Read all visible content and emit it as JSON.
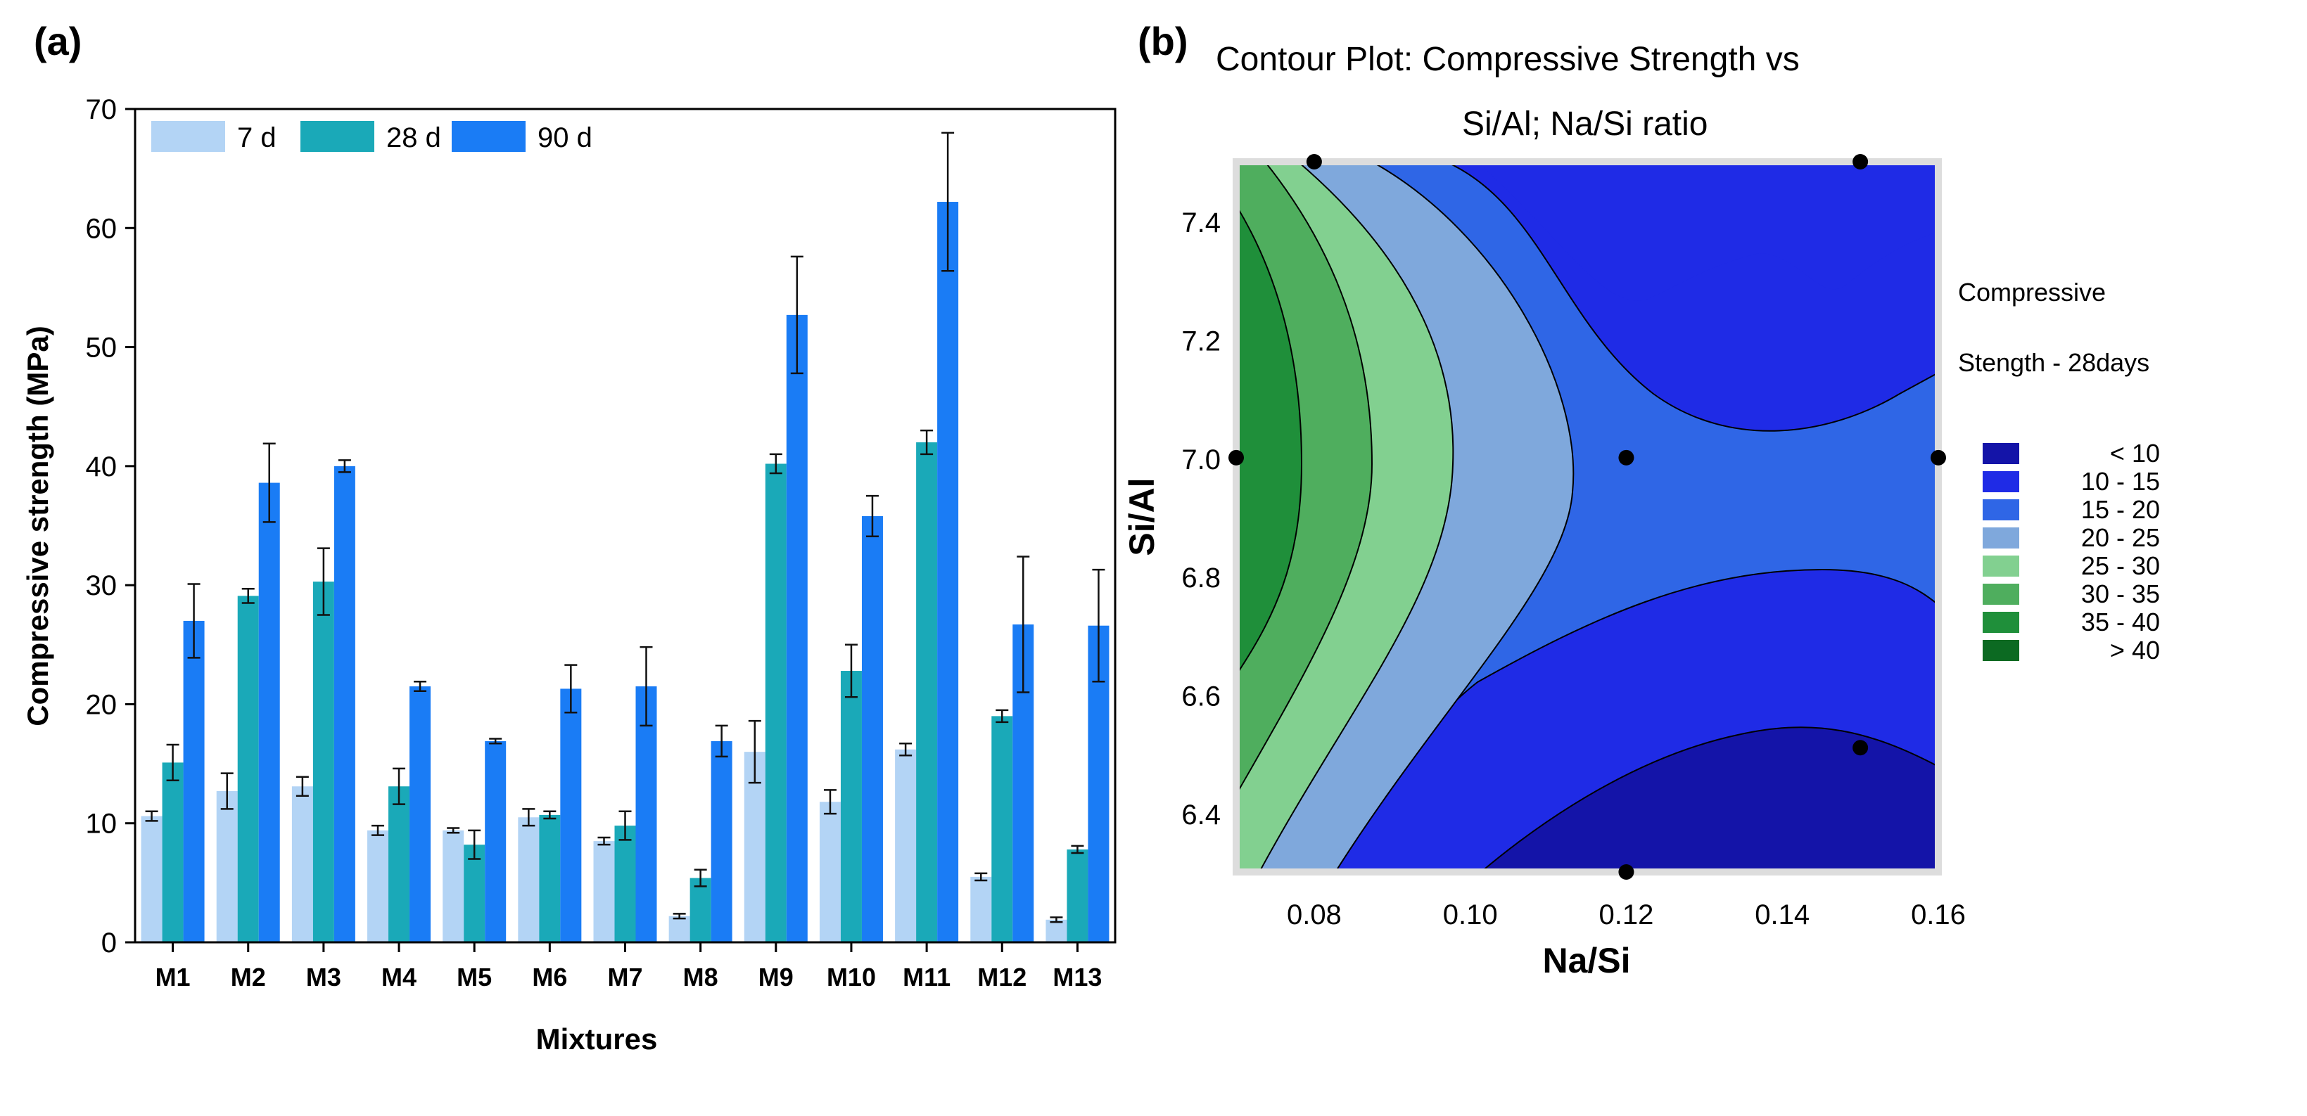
{
  "chart_data": [
    {
      "panel": "(a)",
      "type": "bar",
      "xlabel": "Mixtures",
      "ylabel": "Compressive strength (MPa)",
      "ylim": [
        0,
        70
      ],
      "yticks": [
        0,
        10,
        20,
        30,
        40,
        50,
        60,
        70
      ],
      "categories": [
        "M1",
        "M2",
        "M3",
        "M4",
        "M5",
        "M6",
        "M7",
        "M8",
        "M9",
        "M10",
        "M11",
        "M12",
        "M13"
      ],
      "legend_position": "top-left",
      "series": [
        {
          "name": "7 d",
          "color": "#b3d4f5",
          "values": [
            10.6,
            12.7,
            13.1,
            9.4,
            9.4,
            10.5,
            8.5,
            2.2,
            16.0,
            11.8,
            16.2,
            5.5,
            1.9
          ],
          "errors": [
            0.4,
            1.5,
            0.8,
            0.4,
            0.2,
            0.7,
            0.3,
            0.2,
            2.6,
            1.0,
            0.5,
            0.3,
            0.2
          ]
        },
        {
          "name": "28 d",
          "color": "#1aa9b8",
          "values": [
            15.1,
            29.1,
            30.3,
            13.1,
            8.2,
            10.7,
            9.8,
            5.4,
            40.2,
            22.8,
            42.0,
            19.0,
            7.8
          ],
          "errors": [
            1.5,
            0.6,
            2.8,
            1.5,
            1.2,
            0.3,
            1.2,
            0.7,
            0.8,
            2.2,
            1.0,
            0.5,
            0.3
          ]
        },
        {
          "name": "90 d",
          "color": "#1a7cf5",
          "values": [
            27.0,
            38.6,
            40.0,
            21.5,
            16.9,
            21.3,
            21.5,
            16.9,
            52.7,
            35.8,
            62.2,
            26.7,
            26.6
          ],
          "errors": [
            3.1,
            3.3,
            0.5,
            0.4,
            0.2,
            2.0,
            3.3,
            1.3,
            4.9,
            1.7,
            5.8,
            5.7,
            4.7
          ]
        }
      ]
    },
    {
      "panel": "(b)",
      "type": "contour",
      "title_line1": "Contour Plot: Compressive Strength vs",
      "title_line2": "Si/Al; Na/Si ratio",
      "xlabel": "Na/Si",
      "ylabel": "Si/Al",
      "xlim": [
        0.07,
        0.16
      ],
      "ylim": [
        6.3,
        7.5
      ],
      "xticks": [
        0.08,
        0.1,
        0.12,
        0.14,
        0.16
      ],
      "yticks": [
        6.4,
        6.6,
        6.8,
        7.0,
        7.2,
        7.4
      ],
      "legend_title_line1": "Compressive",
      "legend_title_line2": "Stength - 28days",
      "levels": [
        {
          "label": "< 10",
          "color": "#1414a8"
        },
        {
          "label": "10 - 15",
          "color": "#1f2be6"
        },
        {
          "label": "15 - 20",
          "color": "#2f66e6"
        },
        {
          "label": "20 - 25",
          "color": "#7fa8dc"
        },
        {
          "label": "25 - 30",
          "color": "#82d090"
        },
        {
          "label": "30 - 35",
          "color": "#4fae5e"
        },
        {
          "label": "35 - 40",
          "color": "#1f8f3a"
        },
        {
          "label": "> 40",
          "color": "#0c6a22"
        }
      ],
      "design_points": [
        {
          "x": 0.07,
          "y": 7.0
        },
        {
          "x": 0.08,
          "y": 7.5
        },
        {
          "x": 0.12,
          "y": 7.0
        },
        {
          "x": 0.12,
          "y": 6.3
        },
        {
          "x": 0.15,
          "y": 7.5
        },
        {
          "x": 0.15,
          "y": 6.51
        },
        {
          "x": 0.16,
          "y": 7.0
        }
      ]
    }
  ]
}
